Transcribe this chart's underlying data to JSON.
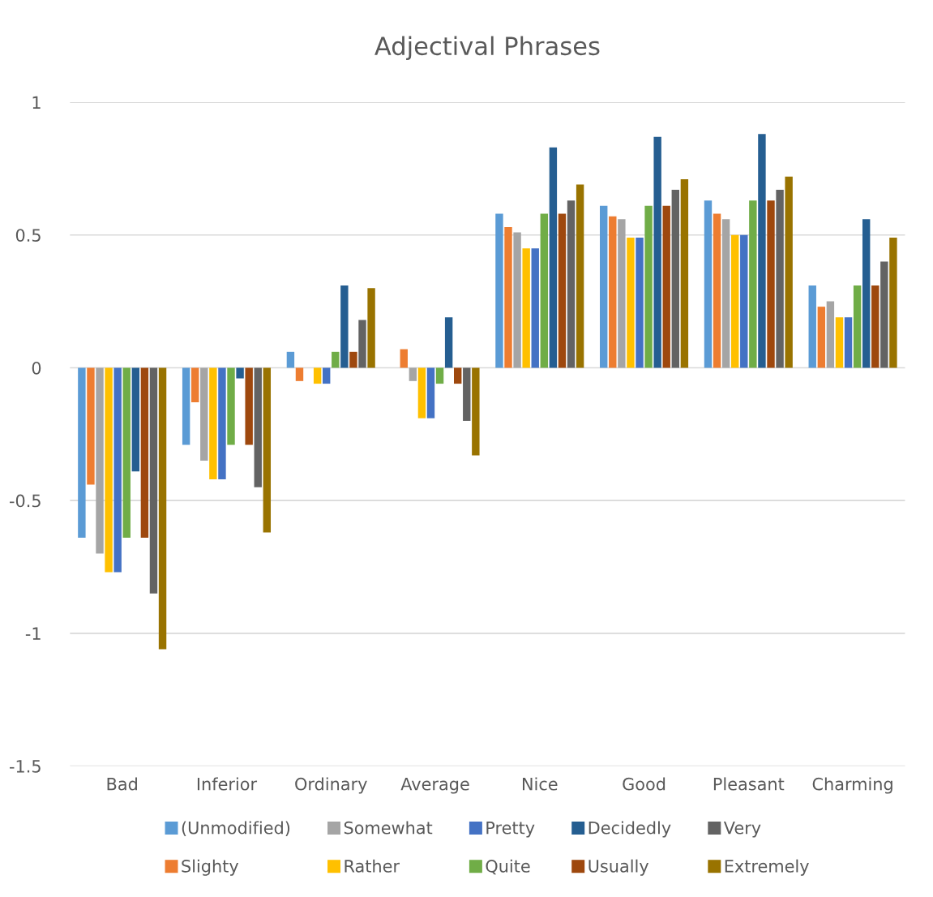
{
  "chart_data": {
    "type": "bar",
    "title": "Adjectival Phrases",
    "categories": [
      "Bad",
      "Inferior",
      "Ordinary",
      "Average",
      "Nice",
      "Good",
      "Pleasant",
      "Charming"
    ],
    "ylim": [
      -1.5,
      1
    ],
    "yticks": [
      -1.5,
      -1,
      -0.5,
      0,
      0.5,
      1
    ],
    "grid": "y",
    "legend": "bottom",
    "series": [
      {
        "name": "(Unmodified)",
        "color": "#5b9bd5",
        "values": [
          -0.64,
          -0.29,
          0.06,
          0,
          0.58,
          0.61,
          0.63,
          0.31
        ]
      },
      {
        "name": "Slighty",
        "color": "#ed7d31",
        "values": [
          -0.44,
          -0.13,
          -0.05,
          0.07,
          0.53,
          0.57,
          0.58,
          0.23
        ]
      },
      {
        "name": "Somewhat",
        "color": "#a5a5a5",
        "values": [
          -0.7,
          -0.35,
          0,
          -0.05,
          0.51,
          0.56,
          0.56,
          0.25
        ]
      },
      {
        "name": "Rather",
        "color": "#ffc000",
        "values": [
          -0.77,
          -0.42,
          -0.06,
          -0.19,
          0.45,
          0.49,
          0.5,
          0.19
        ]
      },
      {
        "name": "Pretty",
        "color": "#4472c4",
        "values": [
          -0.77,
          -0.42,
          -0.06,
          -0.19,
          0.45,
          0.49,
          0.5,
          0.19
        ]
      },
      {
        "name": "Quite",
        "color": "#70ad47",
        "values": [
          -0.64,
          -0.29,
          0.06,
          -0.06,
          0.58,
          0.61,
          0.63,
          0.31
        ]
      },
      {
        "name": "Decidedly",
        "color": "#255e91",
        "values": [
          -0.39,
          -0.04,
          0.31,
          0.19,
          0.83,
          0.87,
          0.88,
          0.56
        ]
      },
      {
        "name": "Usually",
        "color": "#9e480e",
        "values": [
          -0.64,
          -0.29,
          0.06,
          -0.06,
          0.58,
          0.61,
          0.63,
          0.31
        ]
      },
      {
        "name": "Very",
        "color": "#636363",
        "values": [
          -0.85,
          -0.45,
          0.18,
          -0.2,
          0.63,
          0.67,
          0.67,
          0.4
        ]
      },
      {
        "name": "Extremely",
        "color": "#997300",
        "values": [
          -1.06,
          -0.62,
          0.3,
          -0.33,
          0.69,
          0.71,
          0.72,
          0.49
        ]
      }
    ]
  }
}
